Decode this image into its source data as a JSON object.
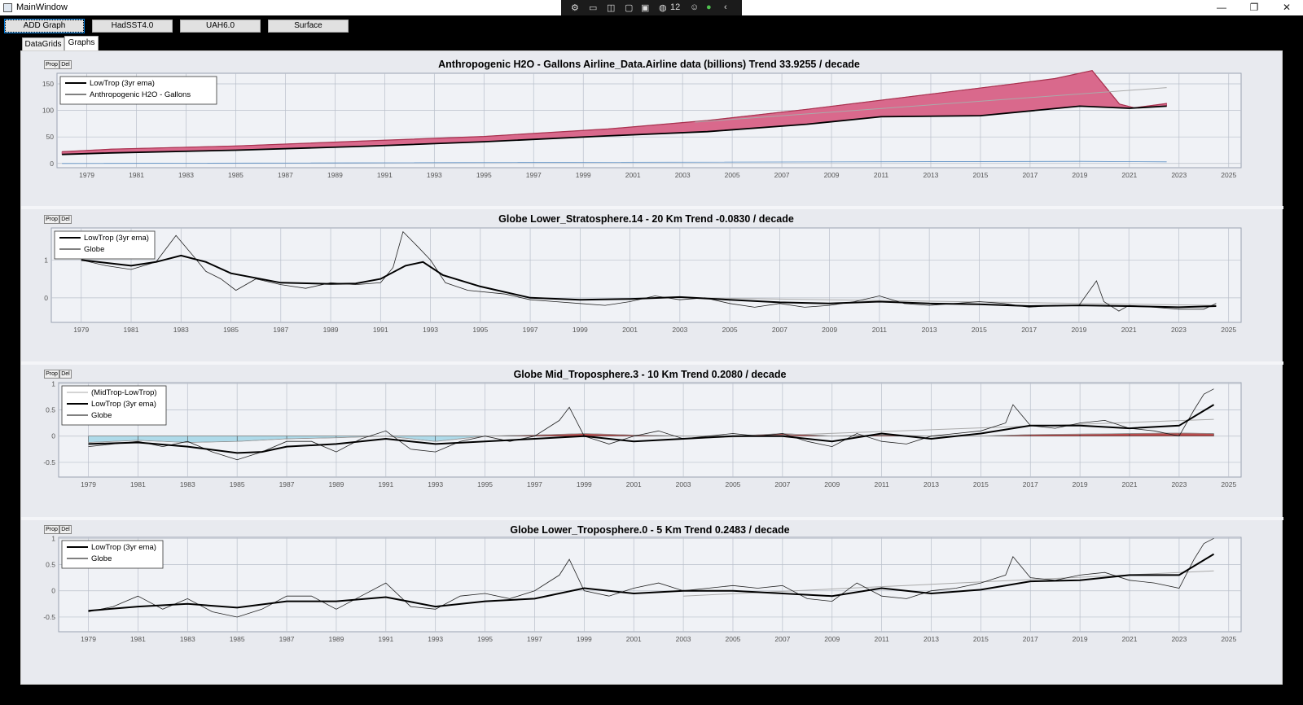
{
  "window": {
    "title": "MainWindow",
    "minimize": "—",
    "restore": "❐",
    "close": "✕"
  },
  "tray": {
    "count": "12"
  },
  "toolbar": {
    "buttons": [
      "ADD Graph",
      "HadSST4.0",
      "UAH6.0",
      "Surface"
    ]
  },
  "tabs": [
    {
      "label": "DataGrids",
      "selected": false
    },
    {
      "label": "Graphs",
      "selected": true
    }
  ],
  "graph_buttons": {
    "prop": "Prop",
    "del": "Del"
  },
  "colors": {
    "fill_pink": "#d9698c",
    "fill_blue": "#a7d8e8",
    "fill_red": "#b23a3a",
    "plot_bg": "#f0f2f6",
    "grid": "#b9bfca",
    "series_dark": "#000000",
    "series_gray": "#555555",
    "trend_gray": "#aaaaaa"
  },
  "chart_data": [
    {
      "type": "area",
      "title": "Anthropogenic H2O - Gallons Airline_Data.Airline data (billions)  Trend 33.9255 / decade",
      "legend": [
        "LowTrop (3yr ema)",
        "Anthropogenic H2O - Gallons"
      ],
      "legend_position": "top-left",
      "ylim": [
        -8,
        170
      ],
      "yticks": [
        "150",
        "100",
        "50",
        "0"
      ],
      "ytick_values": [
        150,
        100,
        50,
        0
      ],
      "xlim": [
        1977.8,
        2025.5
      ],
      "xticks": [
        "1979",
        "1981",
        "1983",
        "1985",
        "1987",
        "1989",
        "1991",
        "1993",
        "1995",
        "1997",
        "1999",
        "2001",
        "2003",
        "2005",
        "2007",
        "2009",
        "2011",
        "2013",
        "2015",
        "2017",
        "2019",
        "2021",
        "2023",
        "2025"
      ],
      "series": [
        {
          "name": "Anthropogenic H2O - Gallons",
          "x": [
            1978,
            1980,
            1985,
            1990,
            1995,
            2000,
            2004,
            2008,
            2012,
            2016,
            2018,
            2019.5,
            2020.6,
            2021.2,
            2022.5
          ],
          "values": [
            22,
            27,
            33,
            42,
            51,
            65,
            81,
            102,
            125,
            148,
            160,
            175,
            112,
            105,
            113
          ]
        },
        {
          "name": "LowTrop (3yr ema)",
          "x": [
            1978,
            1980,
            1985,
            1990,
            1995,
            2000,
            2004,
            2008,
            2011,
            2015,
            2019,
            2021,
            2022.5
          ],
          "values": [
            17,
            20,
            25,
            32,
            41,
            52,
            60,
            74,
            88,
            90,
            108,
            104,
            108
          ]
        }
      ],
      "trend": {
        "x": [
          2003.5,
          2022.5
        ],
        "values": [
          78,
          143
        ]
      },
      "baseline": {
        "x": [
          1978,
          2019,
          2022.5
        ],
        "values": [
          0,
          4,
          3
        ]
      }
    },
    {
      "type": "line",
      "title": "Globe Lower_Stratosphere.14 - 20 Km Trend -0.0830 / decade",
      "legend": [
        "LowTrop (3yr ema)",
        "Globe"
      ],
      "legend_position": "top-left",
      "ylim": [
        -0.65,
        1.85
      ],
      "yticks": [
        "1",
        "0"
      ],
      "ytick_values": [
        1,
        0
      ],
      "xlim": [
        1977.8,
        2025.5
      ],
      "xticks": [
        "1979",
        "1981",
        "1983",
        "1985",
        "1987",
        "1989",
        "1991",
        "1993",
        "1995",
        "1997",
        "1999",
        "2001",
        "2003",
        "2005",
        "2007",
        "2009",
        "2011",
        "2013",
        "2015",
        "2017",
        "2019",
        "2021",
        "2023",
        "2025"
      ],
      "series": [
        {
          "name": "Globe",
          "x": [
            1979,
            1980,
            1981,
            1982,
            1982.8,
            1983.5,
            1984,
            1984.6,
            1985.2,
            1986,
            1987,
            1988,
            1989,
            1990,
            1991,
            1991.5,
            1991.9,
            1992.5,
            1993,
            1993.6,
            1994.5,
            1996,
            1997,
            1998,
            1999,
            2000,
            2001,
            2002,
            2003,
            2004,
            2005,
            2006,
            2007,
            2008,
            2009,
            2010,
            2011,
            2012,
            2013,
            2014,
            2015,
            2016,
            2017,
            2018,
            2019,
            2019.7,
            2020,
            2020.6,
            2021,
            2022,
            2023,
            2024,
            2024.5
          ],
          "values": [
            1.0,
            0.85,
            0.75,
            0.95,
            1.65,
            1.1,
            0.7,
            0.5,
            0.2,
            0.5,
            0.35,
            0.25,
            0.4,
            0.35,
            0.4,
            0.8,
            1.75,
            1.35,
            1.0,
            0.4,
            0.2,
            0.1,
            -0.05,
            -0.1,
            -0.15,
            -0.2,
            -0.1,
            0.05,
            -0.05,
            0.0,
            -0.15,
            -0.25,
            -0.15,
            -0.25,
            -0.2,
            -0.1,
            0.05,
            -0.15,
            -0.2,
            -0.15,
            -0.1,
            -0.15,
            -0.25,
            -0.2,
            -0.2,
            0.45,
            -0.1,
            -0.35,
            -0.2,
            -0.25,
            -0.3,
            -0.3,
            -0.15
          ]
        },
        {
          "name": "LowTrop (3yr ema)",
          "x": [
            1979,
            1981,
            1982,
            1983,
            1984,
            1985,
            1987,
            1989,
            1990,
            1991,
            1992,
            1992.7,
            1993.5,
            1995,
            1997,
            1999,
            2001,
            2003,
            2005,
            2007,
            2009,
            2011,
            2013,
            2015,
            2017,
            2019,
            2021,
            2023,
            2024.5
          ],
          "values": [
            1.0,
            0.85,
            0.95,
            1.12,
            0.95,
            0.65,
            0.4,
            0.37,
            0.38,
            0.5,
            0.85,
            0.95,
            0.6,
            0.3,
            0.0,
            -0.05,
            -0.03,
            0.02,
            -0.05,
            -0.12,
            -0.15,
            -0.1,
            -0.15,
            -0.17,
            -0.22,
            -0.2,
            -0.22,
            -0.25,
            -0.22
          ]
        }
      ],
      "trend": {
        "x": [
          2003.5,
          2024.5
        ],
        "values": [
          0.0,
          -0.2
        ]
      }
    },
    {
      "type": "line",
      "title": "Globe Mid_Troposphere.3 - 10 Km Trend 0.2080 / decade",
      "legend": [
        "(MidTrop-LowTrop)",
        "LowTrop (3yr ema)",
        "Globe"
      ],
      "legend_position": "top-left",
      "ylim": [
        -0.78,
        1.02
      ],
      "yticks": [
        "1",
        "0.5",
        "0",
        "-0.5"
      ],
      "ytick_values": [
        1,
        0.5,
        0,
        -0.5
      ],
      "xlim": [
        1977.8,
        2025.5
      ],
      "xticks": [
        "1979",
        "1981",
        "1983",
        "1985",
        "1987",
        "1989",
        "1991",
        "1993",
        "1995",
        "1997",
        "1999",
        "2001",
        "2003",
        "2005",
        "2007",
        "2009",
        "2011",
        "2013",
        "2015",
        "2017",
        "2019",
        "2021",
        "2023",
        "2025"
      ],
      "series": [
        {
          "name": "Globe",
          "x": [
            1979,
            1980,
            1981,
            1982,
            1983,
            1984,
            1985,
            1986,
            1987,
            1988,
            1989,
            1990,
            1991,
            1992,
            1993,
            1994,
            1995,
            1996,
            1997,
            1998,
            1998.4,
            1999,
            2000,
            2001,
            2002,
            2003,
            2004,
            2005,
            2006,
            2007,
            2008,
            2009,
            2010,
            2011,
            2012,
            2013,
            2014,
            2015,
            2016,
            2016.3,
            2017,
            2018,
            2019,
            2020,
            2021,
            2022,
            2023,
            2023.6,
            2024,
            2024.4
          ],
          "values": [
            -0.2,
            -0.15,
            -0.1,
            -0.2,
            -0.1,
            -0.3,
            -0.45,
            -0.3,
            -0.1,
            -0.1,
            -0.3,
            -0.05,
            0.1,
            -0.25,
            -0.3,
            -0.1,
            0.0,
            -0.1,
            0.0,
            0.3,
            0.55,
            0.0,
            -0.15,
            0.0,
            0.1,
            -0.05,
            0.0,
            0.05,
            0.0,
            0.05,
            -0.1,
            -0.2,
            0.05,
            -0.1,
            -0.15,
            0.0,
            0.05,
            0.1,
            0.25,
            0.6,
            0.2,
            0.15,
            0.25,
            0.3,
            0.15,
            0.1,
            0.0,
            0.5,
            0.8,
            0.9
          ]
        },
        {
          "name": "LowTrop (3yr ema)",
          "x": [
            1979,
            1981,
            1983,
            1985,
            1986,
            1987,
            1989,
            1991,
            1993,
            1995,
            1997,
            1999,
            2001,
            2003,
            2005,
            2007,
            2009,
            2011,
            2013,
            2015,
            2017,
            2019,
            2021,
            2023,
            2024.4
          ],
          "values": [
            -0.15,
            -0.12,
            -0.2,
            -0.32,
            -0.3,
            -0.2,
            -0.15,
            -0.05,
            -0.15,
            -0.1,
            -0.05,
            0.0,
            -0.1,
            -0.05,
            0.0,
            0.0,
            -0.1,
            0.05,
            -0.05,
            0.05,
            0.2,
            0.2,
            0.15,
            0.2,
            0.6
          ]
        },
        {
          "name": "(MidTrop-LowTrop)",
          "x": [
            1979,
            1981,
            1983,
            1985,
            1987,
            1989,
            1991,
            1993,
            1995,
            1997,
            1999,
            2001,
            2003,
            2005,
            2007,
            2009,
            2011,
            2013,
            2015,
            2017,
            2019,
            2021,
            2023,
            2024.4
          ],
          "values": [
            -0.12,
            -0.08,
            -0.12,
            -0.1,
            -0.05,
            -0.03,
            0.0,
            -0.1,
            0.0,
            0.02,
            0.05,
            0.02,
            0.0,
            0.0,
            0.05,
            0.0,
            0.02,
            0.0,
            0.0,
            0.03,
            0.04,
            0.05,
            0.06,
            0.05
          ]
        }
      ],
      "trend": {
        "x": [
          2003,
          2024.4
        ],
        "values": [
          -0.05,
          0.32
        ]
      }
    },
    {
      "type": "line",
      "title": "Globe Lower_Troposphere.0 - 5 Km Trend 0.2483 / decade",
      "legend": [
        "LowTrop (3yr ema)",
        "Globe"
      ],
      "legend_position": "top-left",
      "ylim": [
        -0.78,
        1.02
      ],
      "yticks": [
        "1",
        "0.5",
        "0",
        "-0.5"
      ],
      "ytick_values": [
        1,
        0.5,
        0,
        -0.5
      ],
      "xlim": [
        1977.8,
        2025.5
      ],
      "xticks": [
        "1979",
        "1981",
        "1983",
        "1985",
        "1987",
        "1989",
        "1991",
        "1993",
        "1995",
        "1997",
        "1999",
        "2001",
        "2003",
        "2005",
        "2007",
        "2009",
        "2011",
        "2013",
        "2015",
        "2017",
        "2019",
        "2021",
        "2023",
        "2025"
      ],
      "series": [
        {
          "name": "Globe",
          "x": [
            1979,
            1980,
            1981,
            1982,
            1983,
            1984,
            1985,
            1986,
            1987,
            1988,
            1989,
            1990,
            1991,
            1992,
            1993,
            1994,
            1995,
            1996,
            1997,
            1998,
            1998.4,
            1999,
            2000,
            2001,
            2002,
            2003,
            2004,
            2005,
            2006,
            2007,
            2008,
            2009,
            2010,
            2011,
            2012,
            2013,
            2014,
            2015,
            2016,
            2016.3,
            2017,
            2018,
            2019,
            2020,
            2021,
            2022,
            2023,
            2023.6,
            2024,
            2024.4
          ],
          "values": [
            -0.4,
            -0.3,
            -0.1,
            -0.35,
            -0.15,
            -0.4,
            -0.5,
            -0.35,
            -0.1,
            -0.1,
            -0.35,
            -0.1,
            0.15,
            -0.3,
            -0.35,
            -0.1,
            -0.05,
            -0.15,
            0.0,
            0.3,
            0.6,
            0.0,
            -0.1,
            0.05,
            0.15,
            0.0,
            0.05,
            0.1,
            0.05,
            0.1,
            -0.15,
            -0.2,
            0.15,
            -0.1,
            -0.15,
            0.0,
            0.05,
            0.15,
            0.3,
            0.65,
            0.25,
            0.2,
            0.3,
            0.35,
            0.2,
            0.15,
            0.05,
            0.6,
            0.9,
            1.0
          ]
        },
        {
          "name": "LowTrop (3yr ema)",
          "x": [
            1979,
            1981,
            1983,
            1985,
            1987,
            1989,
            1991,
            1993,
            1995,
            1997,
            1999,
            2001,
            2003,
            2005,
            2007,
            2009,
            2011,
            2013,
            2015,
            2017,
            2019,
            2021,
            2023,
            2024.4
          ],
          "values": [
            -0.38,
            -0.3,
            -0.25,
            -0.32,
            -0.2,
            -0.2,
            -0.12,
            -0.3,
            -0.2,
            -0.15,
            0.05,
            -0.05,
            0.0,
            0.0,
            -0.05,
            -0.1,
            0.05,
            -0.05,
            0.02,
            0.18,
            0.2,
            0.3,
            0.3,
            0.7
          ]
        }
      ],
      "trend": {
        "x": [
          2003,
          2024.4
        ],
        "values": [
          -0.1,
          0.38
        ]
      }
    }
  ]
}
